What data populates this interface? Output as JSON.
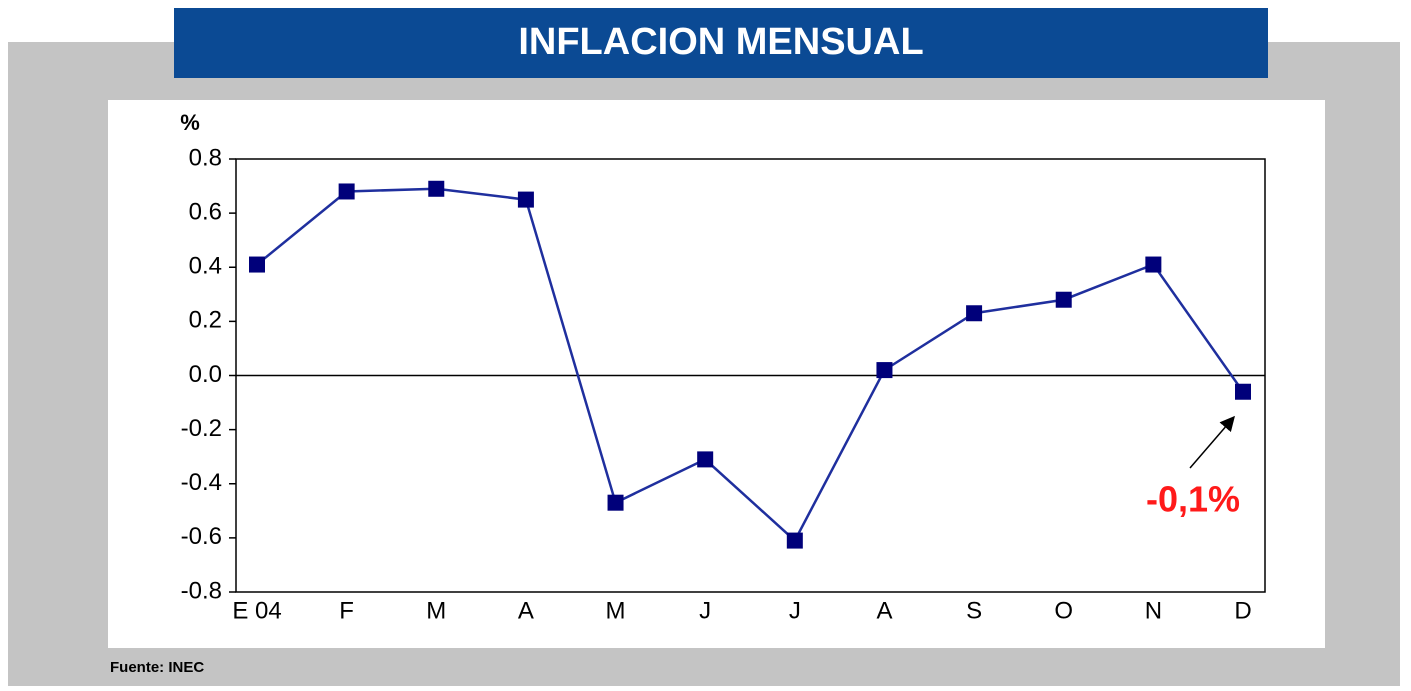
{
  "chart_data": {
    "type": "line",
    "title": "INFLACION MENSUAL",
    "y_label": "%",
    "categories": [
      "E 04",
      "F",
      "M",
      "A",
      "M",
      "J",
      "J",
      "A",
      "S",
      "O",
      "N",
      "D"
    ],
    "series": [
      {
        "name": "Inflación mensual",
        "color": "#1f2f9e",
        "marker_color": "#00007a",
        "values": [
          0.41,
          0.68,
          0.69,
          0.65,
          -0.47,
          -0.31,
          -0.61,
          0.02,
          0.23,
          0.28,
          0.41,
          -0.06
        ]
      }
    ],
    "ylim": [
      -0.8,
      0.8
    ],
    "yticks": [
      -0.8,
      -0.6,
      -0.4,
      -0.2,
      {
        "value": 0,
        "label": "0.0"
      },
      0.2,
      0.4,
      0.6,
      0.8
    ],
    "annotation": "-0,1%",
    "source": "Fuente: INEC"
  }
}
